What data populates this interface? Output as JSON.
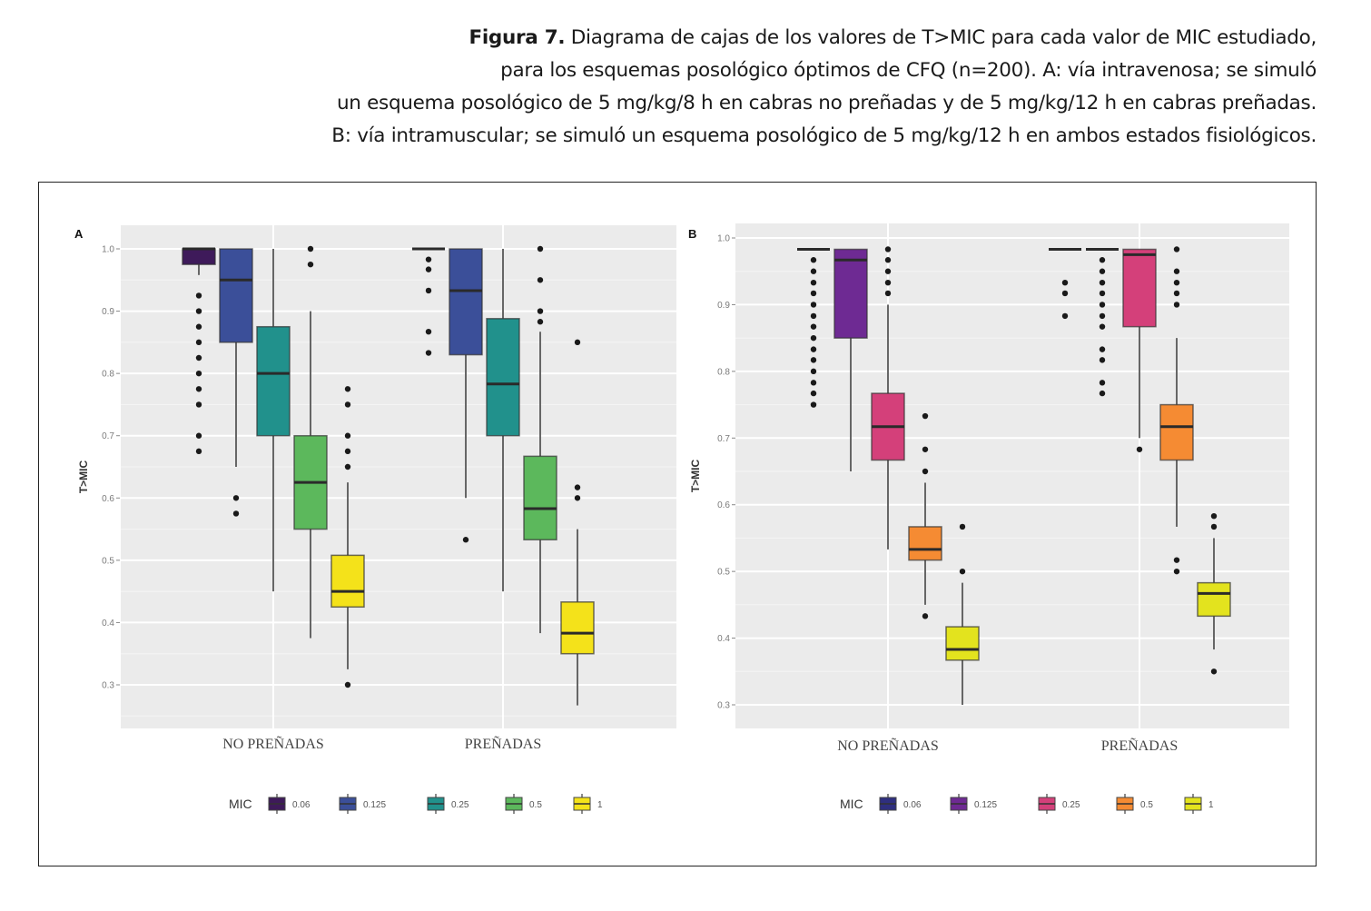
{
  "caption": {
    "bold": "Figura 7.",
    "line1": " Diagrama de cajas de los valores de T>MIC para cada valor de MIC estudiado,",
    "line2": "para los esquemas posológico óptimos de CFQ (n=200). A: vía intravenosa; se simuló",
    "line3": "un esquema posológico de 5 mg/kg/8 h en cabras no preñadas y de 5 mg/kg/12 h en cabras preñadas.",
    "line4": "B: vía intramuscular; se simuló un esquema posológico de 5 mg/kg/12 h en ambos estados fisiológicos."
  },
  "chart_data": [
    {
      "type": "box",
      "panel": "A",
      "ylabel": "T>MIC",
      "xlabel": "",
      "ylim": [
        0.25,
        1.04
      ],
      "yticks": [
        "0.3",
        "0.4",
        "0.5",
        "0.6",
        "0.7",
        "0.8",
        "0.9",
        "1.0"
      ],
      "grid": true,
      "categories": [
        "NO PREÑADAS",
        "PREÑADAS"
      ],
      "legend": {
        "title": "MIC",
        "position": "bottom",
        "entries": [
          "0.06",
          "0.125",
          "0.25",
          "0.5",
          "1"
        ]
      },
      "colors": [
        "#3e1a5a",
        "#3b4f99",
        "#21918c",
        "#5cb85c",
        "#f4e21a"
      ],
      "series": [
        {
          "name": "0.06",
          "boxes": [
            {
              "low": 0.958,
              "q1": 0.975,
              "median": 1.0,
              "q3": 1.0,
              "high": 1.0,
              "outliers": [
                0.925,
                0.9,
                0.875,
                0.85,
                0.825,
                0.8,
                0.775,
                0.75,
                0.7,
                0.675
              ]
            },
            {
              "low": 1.0,
              "q1": 1.0,
              "median": 1.0,
              "q3": 1.0,
              "high": 1.0,
              "outliers": [
                0.983,
                0.967,
                0.933,
                0.867,
                0.833
              ]
            }
          ]
        },
        {
          "name": "0.125",
          "boxes": [
            {
              "low": 0.65,
              "q1": 0.85,
              "median": 0.95,
              "q3": 1.0,
              "high": 1.0,
              "outliers": [
                0.6,
                0.575
              ]
            },
            {
              "low": 0.6,
              "q1": 0.83,
              "median": 0.933,
              "q3": 1.0,
              "high": 1.0,
              "outliers": [
                0.533
              ]
            }
          ]
        },
        {
          "name": "0.25",
          "boxes": [
            {
              "low": 0.45,
              "q1": 0.7,
              "median": 0.8,
              "q3": 0.875,
              "high": 1.0,
              "outliers": []
            },
            {
              "low": 0.45,
              "q1": 0.7,
              "median": 0.783,
              "q3": 0.888,
              "high": 1.0,
              "outliers": []
            }
          ]
        },
        {
          "name": "0.5",
          "boxes": [
            {
              "low": 0.375,
              "q1": 0.55,
              "median": 0.625,
              "q3": 0.7,
              "high": 0.9,
              "outliers": [
                1.0,
                0.975
              ]
            },
            {
              "low": 0.383,
              "q1": 0.533,
              "median": 0.583,
              "q3": 0.667,
              "high": 0.867,
              "outliers": [
                1.0,
                0.95,
                0.9,
                0.883
              ]
            }
          ]
        },
        {
          "name": "1",
          "boxes": [
            {
              "low": 0.325,
              "q1": 0.425,
              "median": 0.45,
              "q3": 0.508,
              "high": 0.625,
              "outliers": [
                0.775,
                0.75,
                0.7,
                0.675,
                0.65,
                0.3
              ]
            },
            {
              "low": 0.267,
              "q1": 0.35,
              "median": 0.383,
              "q3": 0.433,
              "high": 0.55,
              "outliers": [
                0.85,
                0.617,
                0.6
              ]
            }
          ]
        }
      ]
    },
    {
      "type": "box",
      "panel": "B",
      "ylabel": "T>MIC",
      "xlabel": "",
      "ylim": [
        0.27,
        1.01
      ],
      "yticks": [
        "0.3",
        "0.4",
        "0.5",
        "0.6",
        "0.7",
        "0.8",
        "0.9",
        "1.0"
      ],
      "grid": true,
      "categories": [
        "NO PREÑADAS",
        "PREÑADAS"
      ],
      "legend": {
        "title": "MIC",
        "position": "bottom",
        "entries": [
          "0.06",
          "0.125",
          "0.25",
          "0.5",
          "1"
        ]
      },
      "colors": [
        "#2f2f7f",
        "#6e2a93",
        "#d4407a",
        "#f58b33",
        "#e3e31e"
      ],
      "series": [
        {
          "name": "0.06",
          "boxes": [
            {
              "low": 0.983,
              "q1": 0.983,
              "median": 0.983,
              "q3": 0.983,
              "high": 0.983,
              "outliers": [
                0.967,
                0.95,
                0.933,
                0.917,
                0.9,
                0.883,
                0.867,
                0.85,
                0.833,
                0.817,
                0.8,
                0.783,
                0.767,
                0.75
              ]
            },
            {
              "low": 0.983,
              "q1": 0.983,
              "median": 0.983,
              "q3": 0.983,
              "high": 0.983,
              "outliers": [
                0.933,
                0.917,
                0.883
              ]
            }
          ]
        },
        {
          "name": "0.125",
          "boxes": [
            {
              "low": 0.65,
              "q1": 0.85,
              "median": 0.967,
              "q3": 0.983,
              "high": 0.983,
              "outliers": []
            },
            {
              "low": 0.983,
              "q1": 0.983,
              "median": 0.983,
              "q3": 0.983,
              "high": 0.983,
              "outliers": [
                0.967,
                0.95,
                0.933,
                0.917,
                0.9,
                0.883,
                0.867,
                0.833,
                0.817,
                0.783,
                0.767
              ]
            }
          ]
        },
        {
          "name": "0.25",
          "boxes": [
            {
              "low": 0.533,
              "q1": 0.667,
              "median": 0.717,
              "q3": 0.767,
              "high": 0.9,
              "outliers": [
                0.983,
                0.967,
                0.95,
                0.933,
                0.917
              ]
            },
            {
              "low": 0.7,
              "q1": 0.867,
              "median": 0.975,
              "q3": 0.983,
              "high": 0.983,
              "outliers": [
                0.683
              ]
            }
          ]
        },
        {
          "name": "0.5",
          "boxes": [
            {
              "low": 0.45,
              "q1": 0.517,
              "median": 0.533,
              "q3": 0.567,
              "high": 0.633,
              "outliers": [
                0.733,
                0.683,
                0.65,
                0.433
              ]
            },
            {
              "low": 0.567,
              "q1": 0.667,
              "median": 0.717,
              "q3": 0.75,
              "high": 0.85,
              "outliers": [
                0.983,
                0.95,
                0.933,
                0.917,
                0.9,
                0.517,
                0.5
              ]
            }
          ]
        },
        {
          "name": "1",
          "boxes": [
            {
              "low": 0.3,
              "q1": 0.367,
              "median": 0.383,
              "q3": 0.417,
              "high": 0.483,
              "outliers": [
                0.567,
                0.5
              ]
            },
            {
              "low": 0.383,
              "q1": 0.433,
              "median": 0.467,
              "q3": 0.483,
              "high": 0.55,
              "outliers": [
                0.583,
                0.567,
                0.35
              ]
            }
          ]
        }
      ]
    }
  ]
}
